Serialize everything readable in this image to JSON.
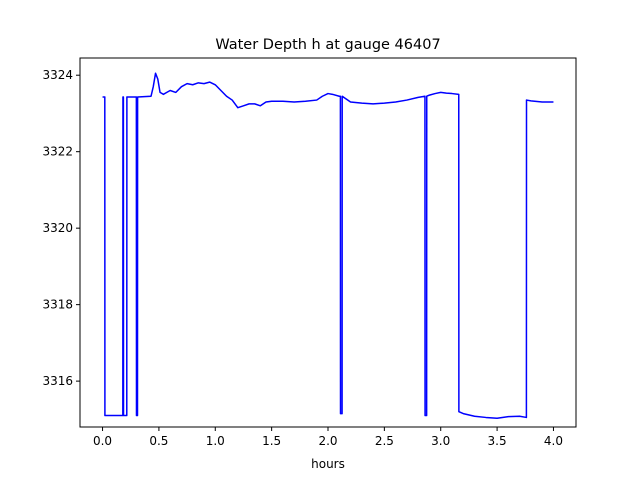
{
  "chart_data": {
    "type": "line",
    "title": "Water Depth h at gauge 46407",
    "xlabel": "hours",
    "ylabel": "",
    "xlim": [
      -0.2,
      4.2
    ],
    "ylim": [
      3314.8,
      3324.45
    ],
    "xticks": [
      0.0,
      0.5,
      1.0,
      1.5,
      2.0,
      2.5,
      3.0,
      3.5,
      4.0
    ],
    "xtick_labels": [
      "0.0",
      "0.5",
      "1.0",
      "1.5",
      "2.0",
      "2.5",
      "3.0",
      "3.5",
      "4.0"
    ],
    "yticks": [
      3316,
      3318,
      3320,
      3322,
      3324
    ],
    "ytick_labels": [
      "3316",
      "3318",
      "3320",
      "3322",
      "3324"
    ],
    "grid": false,
    "series": [
      {
        "color": "#0000ff",
        "x": [
          0.0,
          0.02,
          0.021,
          0.18,
          0.181,
          0.185,
          0.186,
          0.215,
          0.216,
          0.22,
          0.221,
          0.3,
          0.301,
          0.31,
          0.311,
          0.43,
          0.45,
          0.47,
          0.49,
          0.51,
          0.54,
          0.57,
          0.6,
          0.65,
          0.7,
          0.75,
          0.8,
          0.85,
          0.9,
          0.95,
          1.0,
          1.05,
          1.1,
          1.15,
          1.2,
          1.25,
          1.3,
          1.35,
          1.4,
          1.45,
          1.5,
          1.6,
          1.7,
          1.8,
          1.9,
          1.95,
          2.0,
          2.04,
          2.1,
          2.11,
          2.111,
          2.125,
          2.126,
          2.15,
          2.2,
          2.3,
          2.4,
          2.5,
          2.6,
          2.7,
          2.8,
          2.86,
          2.861,
          2.875,
          2.876,
          2.9,
          2.95,
          3.0,
          3.05,
          3.1,
          3.16,
          3.161,
          3.2,
          3.3,
          3.4,
          3.5,
          3.6,
          3.7,
          3.76,
          3.761,
          3.8,
          3.9,
          4.0
        ],
        "y": [
          3323.43,
          3323.43,
          3315.1,
          3315.1,
          3323.43,
          3323.43,
          3315.1,
          3315.1,
          3323.43,
          3323.43,
          3323.43,
          3323.43,
          3315.1,
          3315.1,
          3323.43,
          3323.45,
          3323.7,
          3324.05,
          3323.9,
          3323.55,
          3323.5,
          3323.55,
          3323.6,
          3323.55,
          3323.7,
          3323.78,
          3323.75,
          3323.8,
          3323.78,
          3323.82,
          3323.75,
          3323.6,
          3323.45,
          3323.35,
          3323.15,
          3323.2,
          3323.25,
          3323.25,
          3323.2,
          3323.3,
          3323.32,
          3323.32,
          3323.3,
          3323.32,
          3323.35,
          3323.45,
          3323.52,
          3323.5,
          3323.45,
          3323.45,
          3315.15,
          3315.15,
          3323.45,
          3323.4,
          3323.3,
          3323.27,
          3323.25,
          3323.27,
          3323.3,
          3323.35,
          3323.42,
          3323.45,
          3315.1,
          3315.1,
          3323.45,
          3323.48,
          3323.52,
          3323.55,
          3323.53,
          3323.52,
          3323.5,
          3315.2,
          3315.15,
          3315.08,
          3315.05,
          3315.03,
          3315.07,
          3315.08,
          3315.05,
          3323.35,
          3323.33,
          3323.3,
          3323.3
        ]
      }
    ]
  }
}
